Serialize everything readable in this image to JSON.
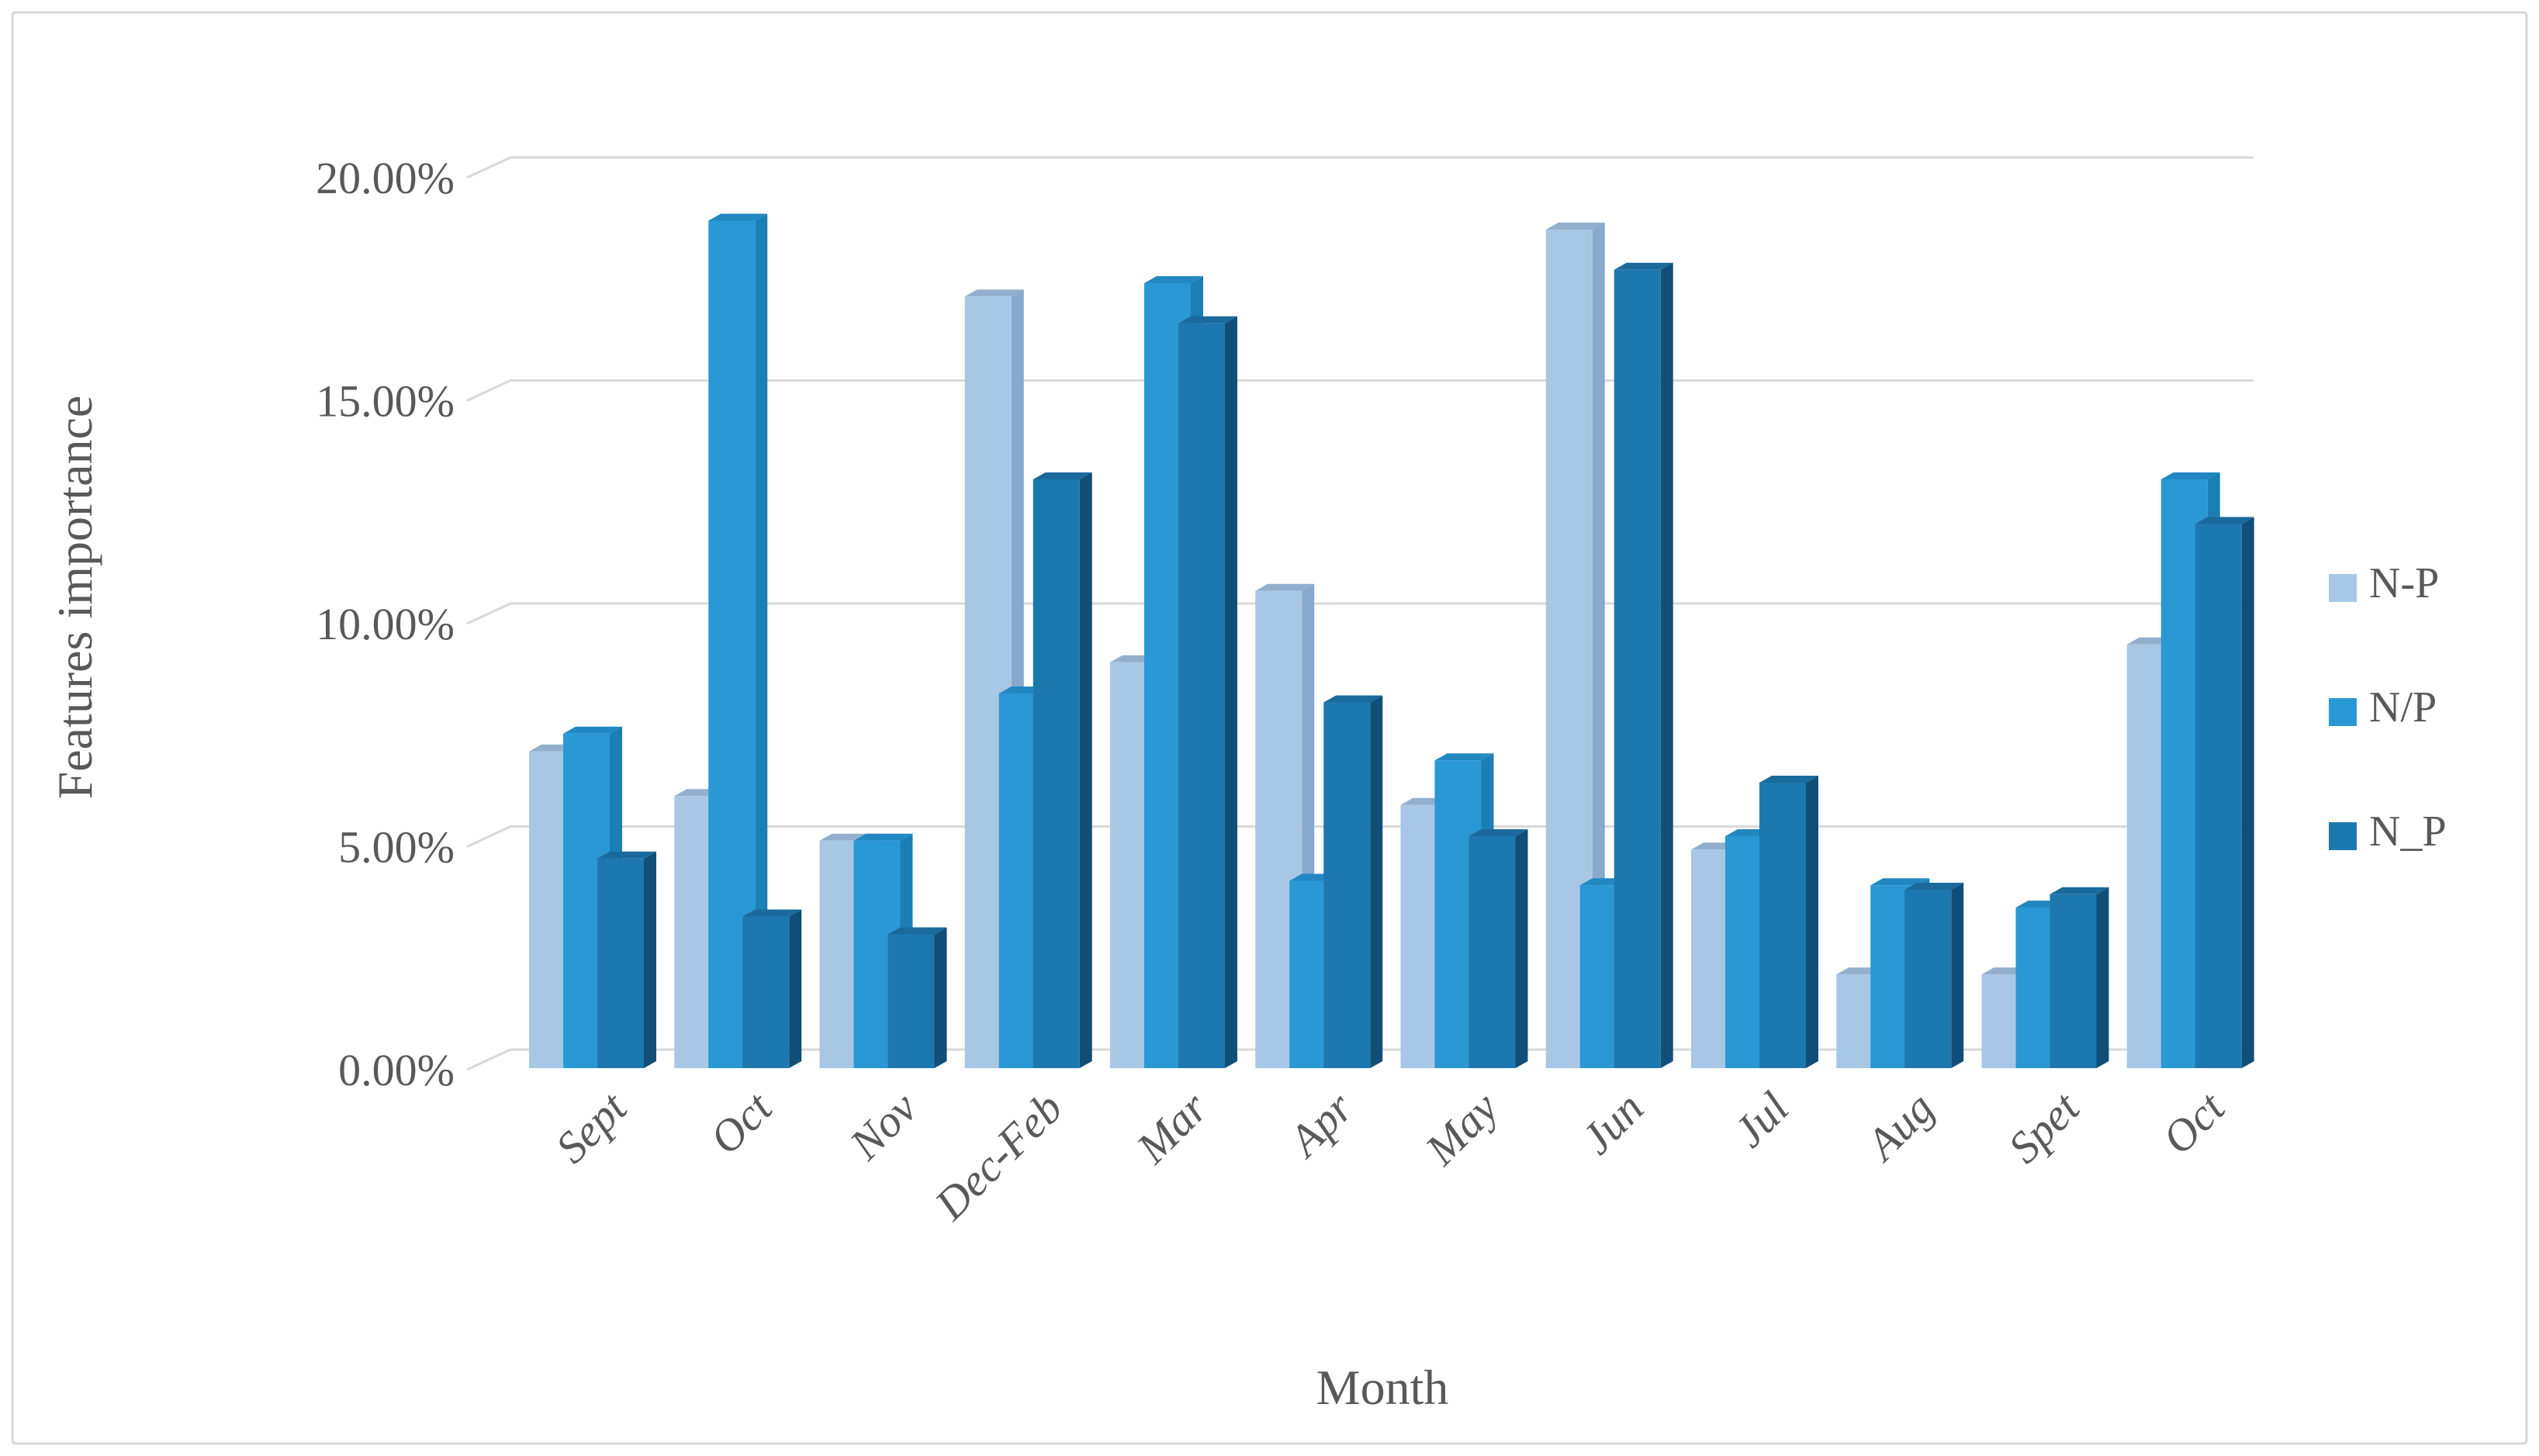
{
  "chart_data": {
    "type": "bar",
    "variant": "3d-clustered-column",
    "title": "",
    "xlabel": "Month",
    "ylabel": "Features importance",
    "categories": [
      "Sept",
      "Oct",
      "Nov",
      "Dec-Feb",
      "Mar",
      "Apr",
      "May",
      "Jun",
      "Jul",
      "Aug",
      "Spet",
      "Oct"
    ],
    "series": [
      {
        "name": "N-P",
        "values": [
          7.1,
          6.1,
          5.1,
          17.3,
          9.1,
          10.7,
          5.9,
          18.8,
          4.9,
          2.1,
          2.1,
          9.5
        ],
        "color_front": "#A8C7E5",
        "color_side": "#86A9CC",
        "color_top": "#92AFCD"
      },
      {
        "name": "N/P",
        "values": [
          7.5,
          19.0,
          5.1,
          8.4,
          17.6,
          4.2,
          6.9,
          4.1,
          5.2,
          4.1,
          3.6,
          13.2
        ],
        "color_front": "#2A98D5",
        "color_side": "#1B7FB4",
        "color_top": "#2288C2"
      },
      {
        "name": "N_P",
        "values": [
          4.7,
          3.4,
          3.0,
          13.2,
          16.7,
          8.2,
          5.2,
          17.9,
          6.4,
          4.0,
          3.9,
          12.2
        ],
        "color_front": "#1E78B0",
        "color_side": "#124F78",
        "color_top": "#1A6A9C"
      }
    ],
    "y_axis": {
      "min": 0,
      "max": 20,
      "step": 5,
      "tick_labels": [
        "0.00%",
        "5.00%",
        "10.00%",
        "15.00%",
        "20.00%"
      ]
    },
    "legend": {
      "position": "right"
    },
    "grid": "horizontal",
    "style": {
      "text_color": "#595959",
      "grid_color": "#D9D9D9",
      "frame_color": "#D9D9D9",
      "background": "#FFFFFF"
    }
  }
}
